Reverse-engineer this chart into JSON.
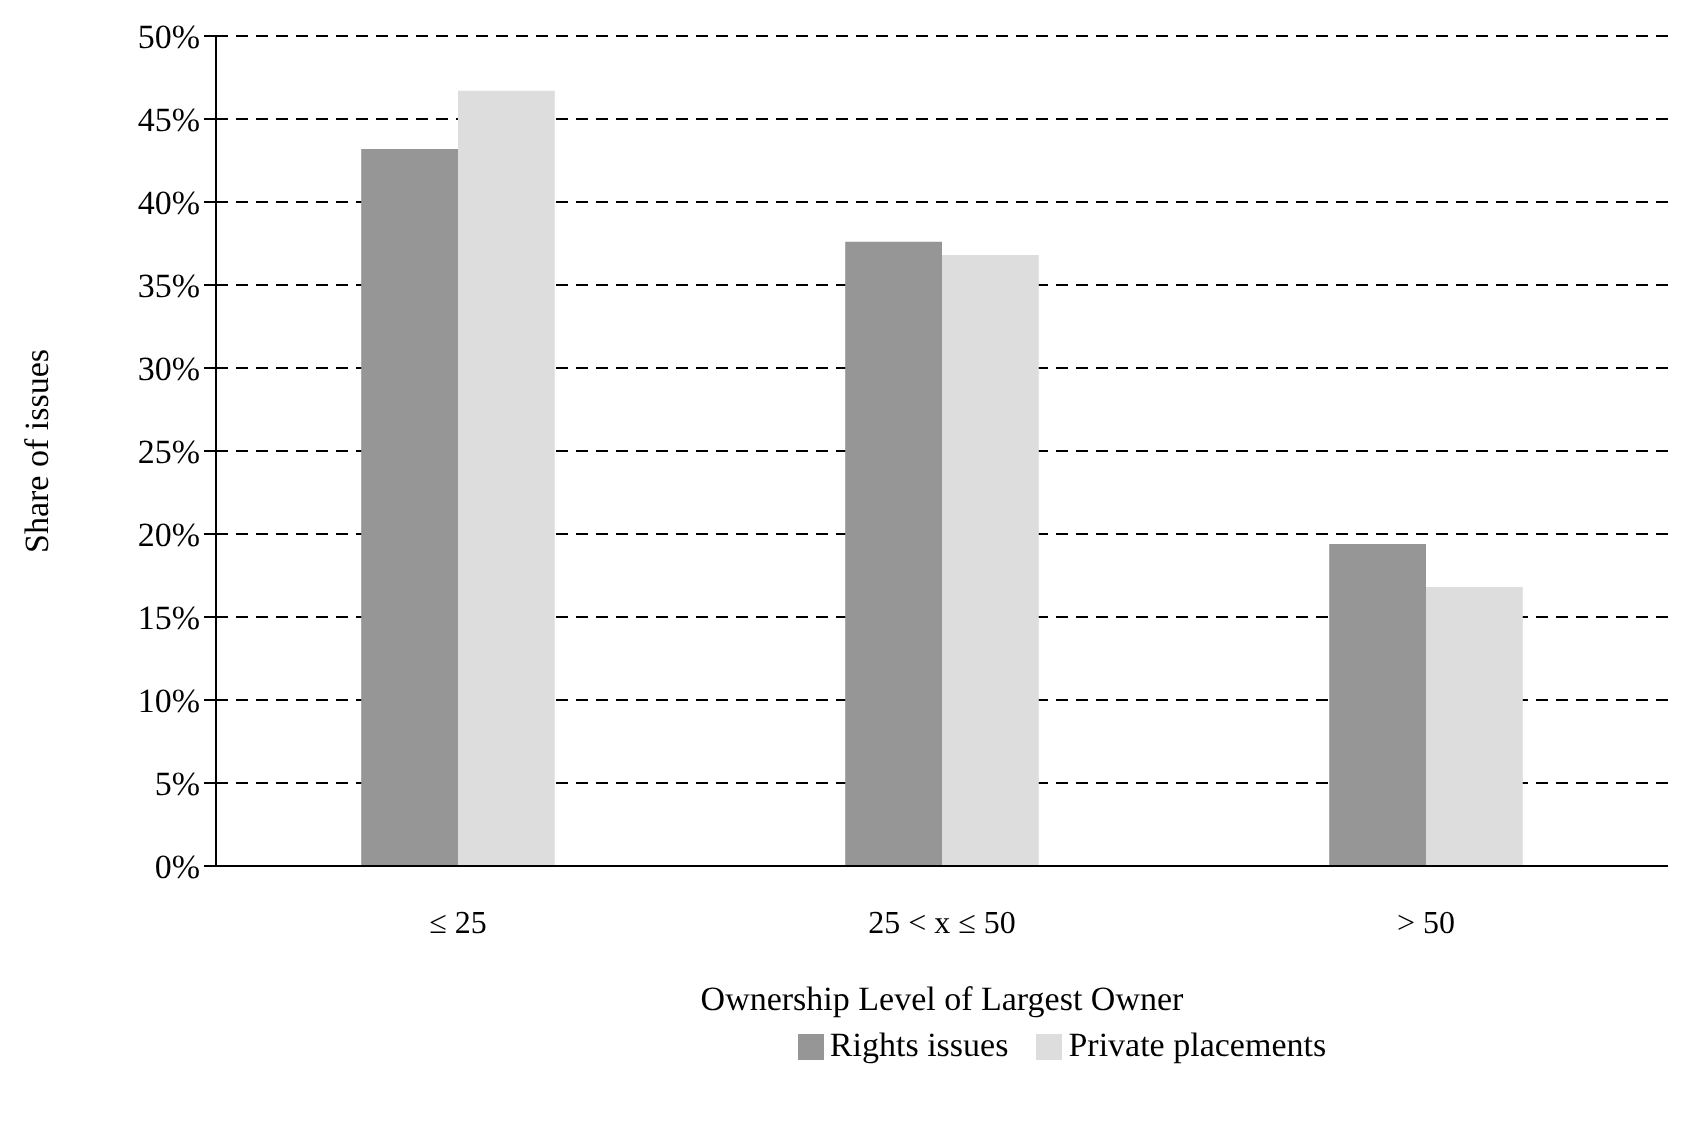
{
  "chart_data": {
    "type": "bar",
    "xlabel": "Ownership Level of Largest Owner",
    "ylabel": "Share of issues",
    "categories": [
      "≤ 25",
      "25 < x ≤ 50",
      "> 50"
    ],
    "series": [
      {
        "name": "Rights issues",
        "color": "#969696",
        "values": [
          43.2,
          37.6,
          19.4
        ]
      },
      {
        "name": "Private placements",
        "color": "#dddddd",
        "values": [
          46.7,
          36.8,
          16.8
        ]
      }
    ],
    "ylim": [
      0,
      50
    ],
    "yticks": [
      {
        "value": 0,
        "label": "0%"
      },
      {
        "value": 5,
        "label": "5%"
      },
      {
        "value": 10,
        "label": "10%"
      },
      {
        "value": 15,
        "label": "15%"
      },
      {
        "value": 20,
        "label": "20%"
      },
      {
        "value": 25,
        "label": "25%"
      },
      {
        "value": 30,
        "label": "30%"
      },
      {
        "value": 35,
        "label": "35%"
      },
      {
        "value": 40,
        "label": "40%"
      },
      {
        "value": 45,
        "label": "45%"
      },
      {
        "value": 50,
        "label": "50%"
      }
    ],
    "grid": "y",
    "legend": "bottom"
  }
}
